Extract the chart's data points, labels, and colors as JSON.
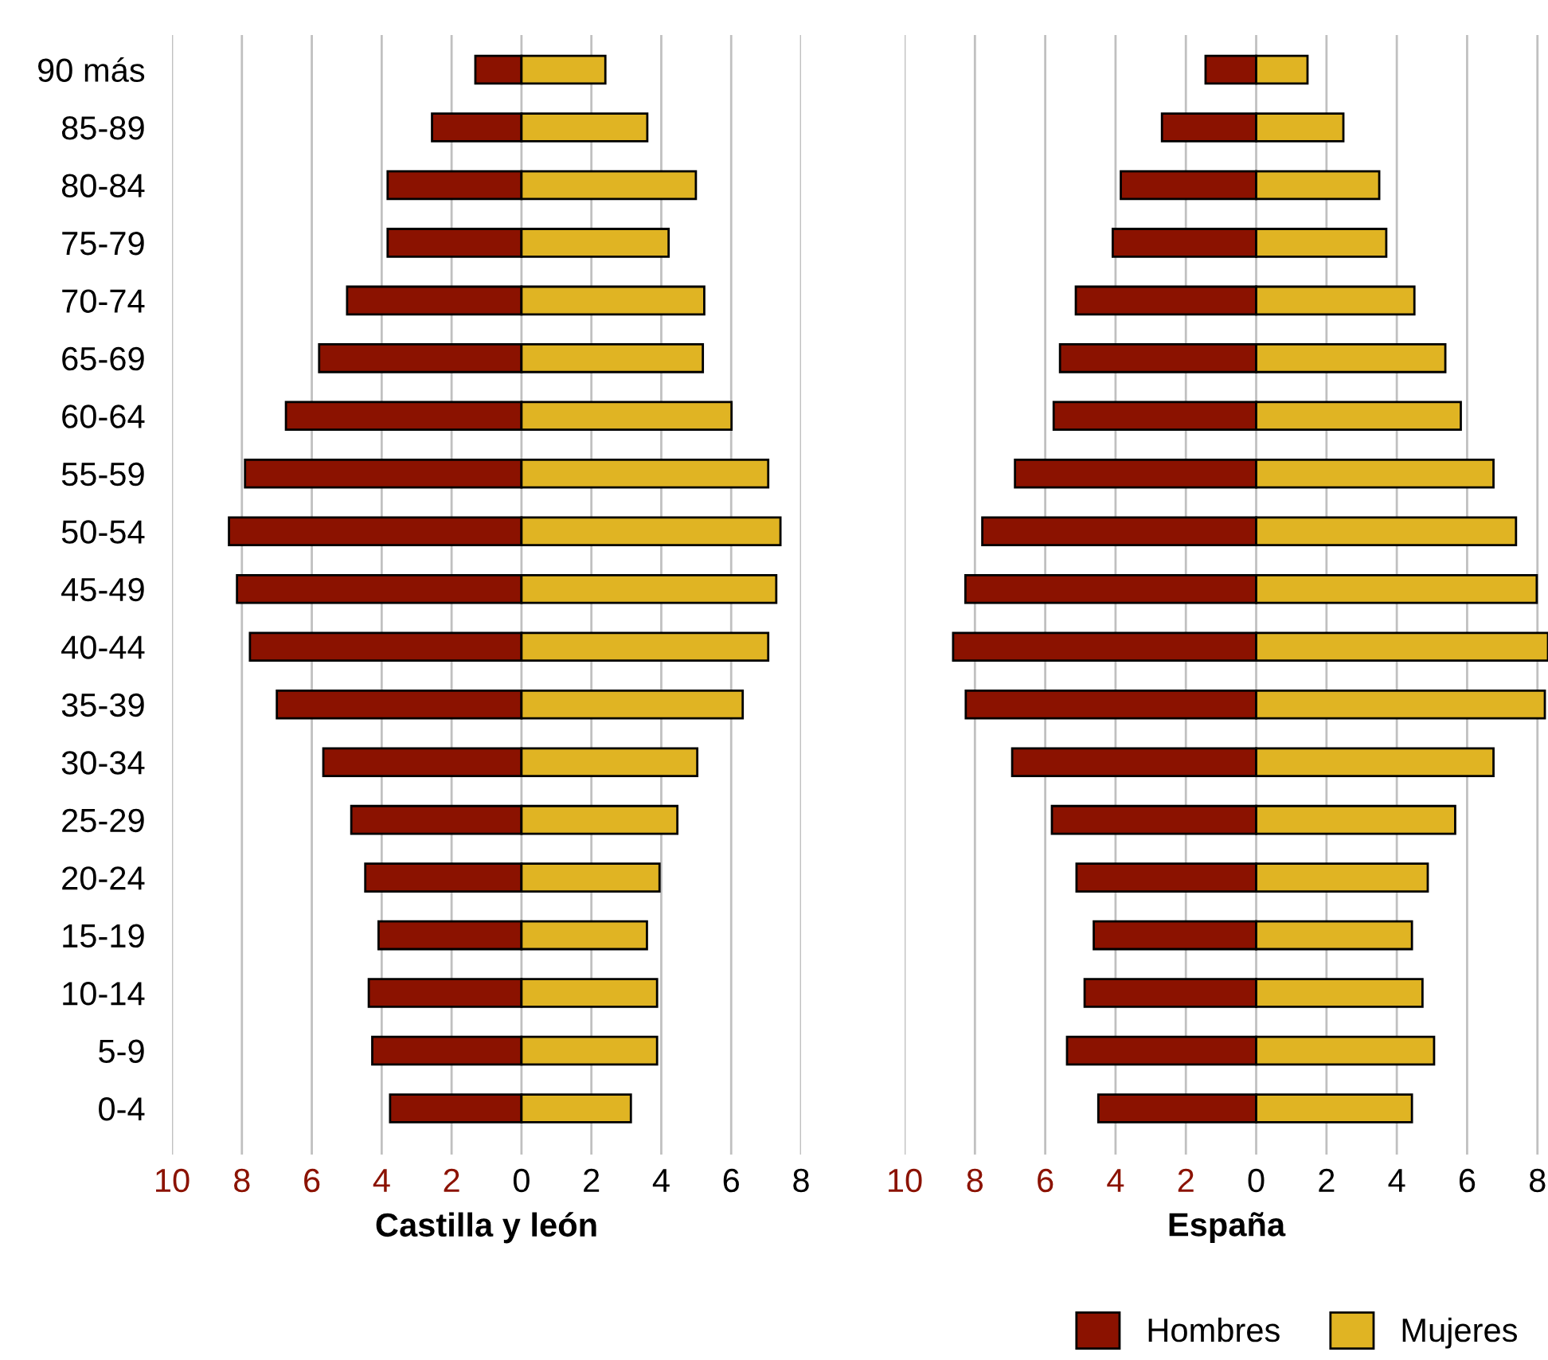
{
  "chart_data": [
    {
      "type": "bar",
      "orientation": "horizontal",
      "stacked": true,
      "xlabel": "Castilla y león",
      "categories": [
        "90 más",
        "85-89",
        "80-84",
        "75-79",
        "70-74",
        "65-69",
        "60-64",
        "55-59",
        "50-54",
        "45-49",
        "40-44",
        "35-39",
        "30-34",
        "25-29",
        "20-24",
        "15-19",
        "10-14",
        "5-9",
        "0-4"
      ],
      "series": [
        {
          "color": "#8b1200",
          "values": [
            -1.32,
            -2.56,
            -3.83,
            -3.83,
            -4.99,
            -5.79,
            -6.74,
            -7.91,
            -8.37,
            -8.14,
            -7.77,
            -7.0,
            -5.67,
            -4.87,
            -4.47,
            -4.09,
            -4.37,
            -4.27,
            -3.76
          ]
        },
        {
          "color": "#e0b423",
          "values": [
            2.4,
            3.6,
            4.99,
            4.21,
            5.23,
            5.19,
            6.01,
            7.06,
            7.41,
            7.29,
            7.06,
            6.33,
            5.03,
            4.46,
            3.95,
            3.59,
            3.88,
            3.88,
            3.13
          ]
        }
      ],
      "xlim": [
        -10,
        8
      ],
      "xticks": [
        {
          "value": -10,
          "label": "10"
        },
        {
          "value": -8,
          "label": "8"
        },
        {
          "value": -6,
          "label": "6"
        },
        {
          "value": -4,
          "label": "4"
        },
        {
          "value": -2,
          "label": "2"
        },
        0,
        2,
        4,
        6,
        8
      ],
      "grid": "x"
    },
    {
      "type": "bar",
      "orientation": "horizontal",
      "stacked": true,
      "xlabel": "España",
      "categories": [
        null,
        null,
        null,
        null,
        null,
        null,
        null,
        null,
        null,
        null,
        null,
        null,
        null,
        null,
        null,
        null,
        null,
        null,
        null
      ],
      "series": [
        {
          "name": "Hombres",
          "color": "#8b1200",
          "values": [
            -1.44,
            -2.68,
            -3.85,
            -4.08,
            -5.13,
            -5.58,
            -5.76,
            -6.86,
            -7.79,
            -8.27,
            -8.62,
            -8.26,
            -6.94,
            -5.81,
            -5.11,
            -4.62,
            -4.88,
            -5.38,
            -4.49
          ]
        },
        {
          "name": "Mujeres",
          "color": "#e0b423",
          "values": [
            1.46,
            2.48,
            3.5,
            3.7,
            4.5,
            5.38,
            5.82,
            6.75,
            7.39,
            7.98,
            8.3,
            8.21,
            6.75,
            5.66,
            4.88,
            4.43,
            4.73,
            5.06,
            4.43
          ]
        }
      ],
      "xlim": [
        -10,
        8.3
      ],
      "xticks": [
        {
          "value": -10,
          "label": "10"
        },
        {
          "value": -8,
          "label": "8"
        },
        {
          "value": -6,
          "label": "6"
        },
        {
          "value": -4,
          "label": "4"
        },
        {
          "value": -2,
          "label": "2"
        },
        0,
        2,
        4,
        6,
        8
      ],
      "grid": "x",
      "legend": "bottom right",
      "tick_labels": "x"
    }
  ]
}
